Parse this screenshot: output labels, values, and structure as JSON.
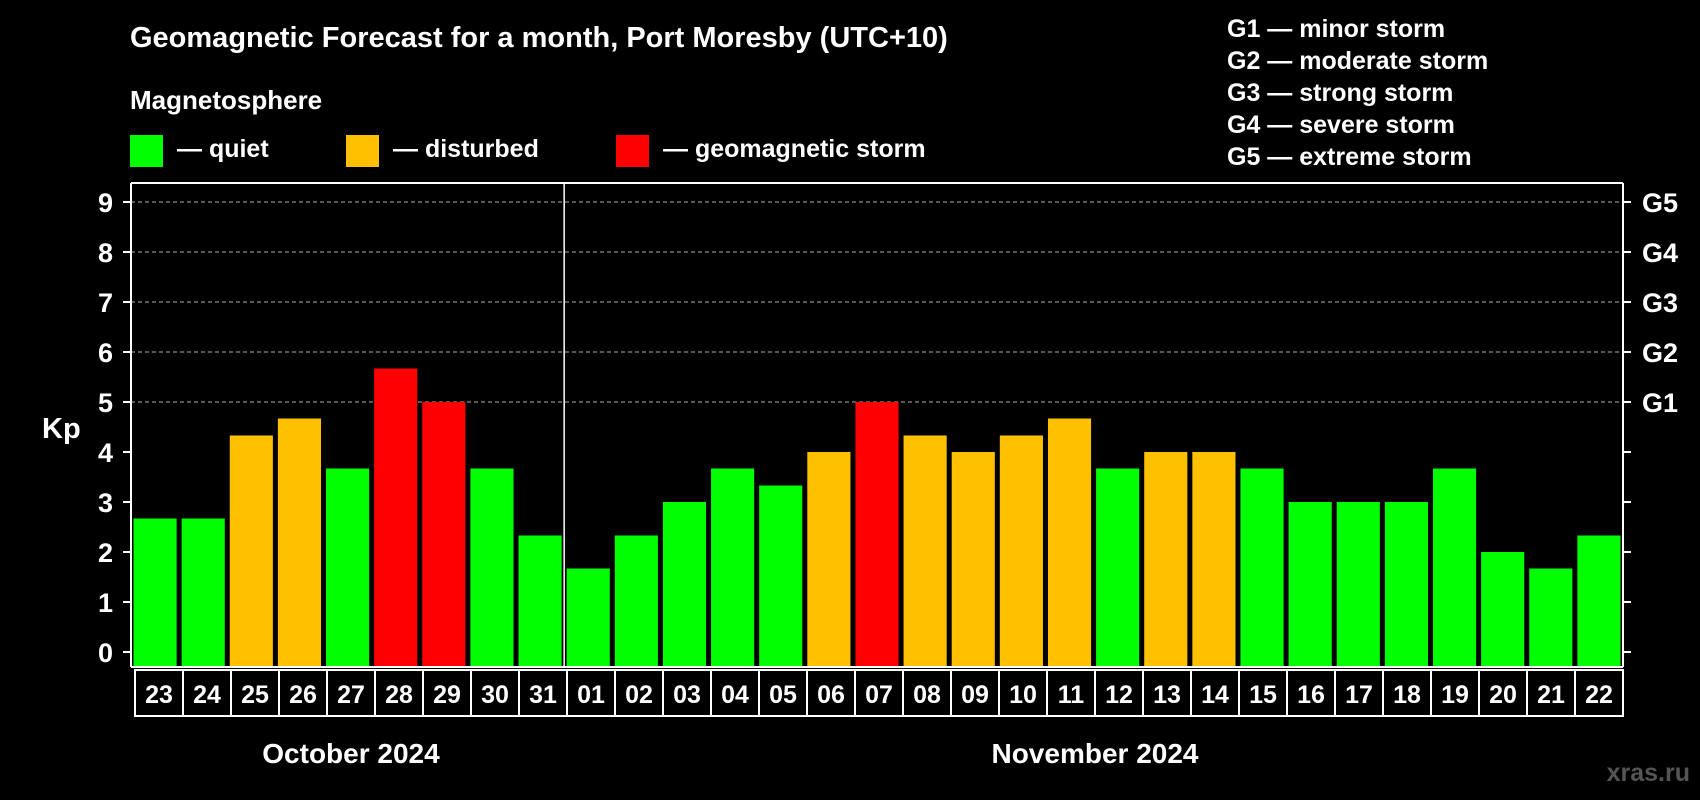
{
  "title": "Geomagnetic Forecast for a month, Port Moresby (UTC+10)",
  "subtitle": "Magnetosphere",
  "legend": [
    {
      "label": "— quiet",
      "color": "#00ff00"
    },
    {
      "label": "— disturbed",
      "color": "#ffc000"
    },
    {
      "label": "— geomagnetic storm",
      "color": "#ff0000"
    }
  ],
  "storm_levels": [
    "G1 — minor storm",
    "G2 — moderate storm",
    "G3 — strong storm",
    "G4 — severe storm",
    "G5 — extreme storm"
  ],
  "watermark": "xras.ru",
  "colors": {
    "quiet": "#00ff00",
    "disturbed": "#ffc000",
    "storm": "#ff0000",
    "background": "#000000",
    "axis": "#ffffff"
  },
  "chart_data": {
    "type": "bar",
    "ylabel": "Kp",
    "ylim": [
      0,
      9
    ],
    "yticks": [
      "0",
      "1",
      "2",
      "3",
      "4",
      "5",
      "6",
      "7",
      "8",
      "9"
    ],
    "right_ticks": [
      {
        "kp": 5,
        "label": "G1"
      },
      {
        "kp": 6,
        "label": "G2"
      },
      {
        "kp": 7,
        "label": "G3"
      },
      {
        "kp": 8,
        "label": "G4"
      },
      {
        "kp": 9,
        "label": "G5"
      }
    ],
    "grid": "dashed horizontal at Kp 5–9",
    "months": [
      {
        "label": "October 2024",
        "start": 0,
        "count": 9
      },
      {
        "label": "November 2024",
        "start": 9,
        "count": 22
      }
    ],
    "categories": [
      "23",
      "24",
      "25",
      "26",
      "27",
      "28",
      "29",
      "30",
      "31",
      "01",
      "02",
      "03",
      "04",
      "05",
      "06",
      "07",
      "08",
      "09",
      "10",
      "11",
      "12",
      "13",
      "14",
      "15",
      "16",
      "17",
      "18",
      "19",
      "20",
      "21",
      "22"
    ],
    "values": [
      2.67,
      2.67,
      4.33,
      4.67,
      3.67,
      5.67,
      5.0,
      3.67,
      2.33,
      1.67,
      2.33,
      3.0,
      3.67,
      3.33,
      4.0,
      5.0,
      4.33,
      4.0,
      4.33,
      4.67,
      3.67,
      4.0,
      4.0,
      3.67,
      3.0,
      3.0,
      3.0,
      3.67,
      2.0,
      1.67,
      2.33
    ],
    "levels": [
      "quiet",
      "quiet",
      "disturbed",
      "disturbed",
      "quiet",
      "storm",
      "storm",
      "quiet",
      "quiet",
      "quiet",
      "quiet",
      "quiet",
      "quiet",
      "quiet",
      "disturbed",
      "storm",
      "disturbed",
      "disturbed",
      "disturbed",
      "disturbed",
      "quiet",
      "disturbed",
      "disturbed",
      "quiet",
      "quiet",
      "quiet",
      "quiet",
      "quiet",
      "quiet",
      "quiet",
      "quiet"
    ]
  }
}
